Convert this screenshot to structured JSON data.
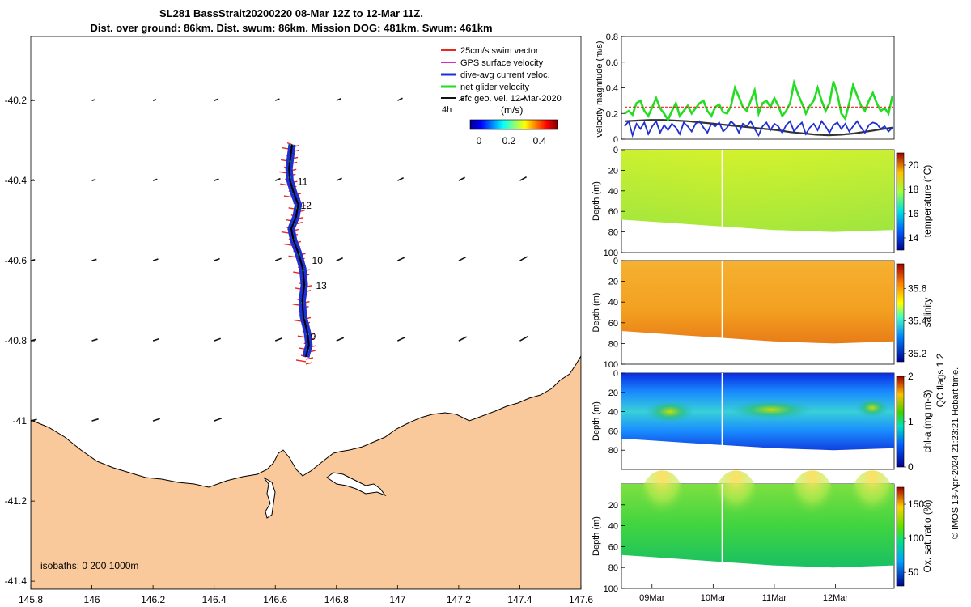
{
  "title": {
    "line1": "SL281 BassStrait20200220 08-Mar 12Z to 12-Mar 11Z.",
    "line2": "Dist. over ground: 86km. Dist. swum: 86km. Mission DOG: 481km. Swum: 461km"
  },
  "colors": {
    "land": "#f9c99b",
    "swim": "#e8281e",
    "gps": "#d22ad2",
    "current": "#1f2fd0",
    "net": "#22dd22",
    "geo": "#111111"
  },
  "chart_data": [
    {
      "type": "map",
      "xlim": [
        145.8,
        147.6
      ],
      "ylim": [
        -41.42,
        -40.04
      ],
      "x_ticks": [
        "145.8",
        "146",
        "146.2",
        "146.4",
        "146.6",
        "146.8",
        "147",
        "147.2",
        "147.4",
        "147.6"
      ],
      "y_ticks": [
        "-40.2",
        "-40.4",
        "-40.6",
        "-40.8",
        "-41",
        "-41.2",
        "-41.4"
      ],
      "legend": {
        "placement": "top-right",
        "entries": [
          "25cm/s swim vector",
          "GPS surface velocity",
          "dive-avg current veloc.",
          "net glider velocity",
          "sfc geo. vel. 12-Mar-2020"
        ],
        "time_label": "4h"
      },
      "colorbar": {
        "label": "(m/s)",
        "ticks": [
          "0",
          "0.2",
          "0.4"
        ],
        "range": [
          0,
          0.5
        ]
      },
      "isobaths_text": "isobaths: 0   200  1000m",
      "track": [
        [
          146.655,
          -40.31
        ],
        [
          146.65,
          -40.34
        ],
        [
          146.645,
          -40.37
        ],
        [
          146.648,
          -40.4
        ],
        [
          146.66,
          -40.43
        ],
        [
          146.675,
          -40.46
        ],
        [
          146.668,
          -40.49
        ],
        [
          146.652,
          -40.52
        ],
        [
          146.66,
          -40.55
        ],
        [
          146.675,
          -40.58
        ],
        [
          146.69,
          -40.62
        ],
        [
          146.695,
          -40.66
        ],
        [
          146.688,
          -40.7
        ],
        [
          146.692,
          -40.74
        ],
        [
          146.705,
          -40.78
        ],
        [
          146.71,
          -40.81
        ],
        [
          146.7,
          -40.84
        ]
      ],
      "day_labels": [
        {
          "text": "11",
          "lon": 146.673,
          "lat": -40.403
        },
        {
          "text": "12",
          "lon": 146.683,
          "lat": -40.462
        },
        {
          "text": "10",
          "lon": 146.72,
          "lat": -40.6
        },
        {
          "text": "13",
          "lon": 146.733,
          "lat": -40.662
        },
        {
          "text": "9",
          "lon": 146.715,
          "lat": -40.79
        }
      ],
      "geo_vector_lats": [
        -40.2,
        -40.4,
        -40.6,
        -40.8,
        -41.0
      ]
    },
    {
      "type": "line",
      "ylabel": "velocity magnitude (m/s)",
      "ylim": [
        0,
        0.8
      ],
      "y_ticks": [
        "0",
        "0.2",
        "0.4",
        "0.6",
        "0.8"
      ],
      "x_ticks": [
        "09Mar",
        "10Mar",
        "11Mar",
        "12Mar"
      ],
      "xlim_days": [
        8.5,
        12.96
      ],
      "series": [
        {
          "values": [
            0.2,
            0.22,
            0.19,
            0.28,
            0.3,
            0.22,
            0.18,
            0.25,
            0.32,
            0.24,
            0.2,
            0.15,
            0.22,
            0.28,
            0.18,
            0.22,
            0.26,
            0.2,
            0.24,
            0.28,
            0.3,
            0.22,
            0.18,
            0.25,
            0.27,
            0.21,
            0.2,
            0.26,
            0.4,
            0.33,
            0.25,
            0.22,
            0.3,
            0.38,
            0.2,
            0.28,
            0.3,
            0.25,
            0.32,
            0.26,
            0.18,
            0.22,
            0.28,
            0.44,
            0.35,
            0.28,
            0.2,
            0.26,
            0.3,
            0.4,
            0.3,
            0.22,
            0.28,
            0.45,
            0.35,
            0.2,
            0.16,
            0.28,
            0.42,
            0.34,
            0.26,
            0.22,
            0.3,
            0.36,
            0.28,
            0.22,
            0.24,
            0.2,
            0.34
          ]
        },
        {
          "values": [
            0.1,
            0.14,
            0.03,
            0.12,
            0.08,
            0.13,
            0.04,
            0.1,
            0.14,
            0.05,
            0.11,
            0.07,
            0.12,
            0.09,
            0.04,
            0.13,
            0.1,
            0.06,
            0.12,
            0.14,
            0.09,
            0.05,
            0.12,
            0.1,
            0.13,
            0.06,
            0.09,
            0.14,
            0.11,
            0.05,
            0.12,
            0.1,
            0.14,
            0.08,
            0.03,
            0.1,
            0.13,
            0.07,
            0.12,
            0.1,
            0.05,
            0.11,
            0.14,
            0.06,
            0.1,
            0.13,
            0.04,
            0.09,
            0.12,
            0.07,
            0.14,
            0.1,
            0.05,
            0.11,
            0.13,
            0.08,
            0.12,
            0.06,
            0.1,
            0.14,
            0.09,
            0.05,
            0.11,
            0.13,
            0.12,
            0.08,
            0.1,
            0.06,
            0.09
          ]
        },
        {
          "values": [
            0.14,
            0.145,
            0.15,
            0.15,
            0.145,
            0.14,
            0.13,
            0.12,
            0.11,
            0.1,
            0.09,
            0.08,
            0.07,
            0.055,
            0.045,
            0.035,
            0.03,
            0.035,
            0.045,
            0.06,
            0.075,
            0.09
          ]
        },
        {
          "values": [
            0.25,
            0.25
          ]
        }
      ]
    },
    {
      "type": "heatmap",
      "variable": "temperature",
      "cb_label": "temperature (°C)",
      "ylabel": "Depth (m)",
      "y_ticks": [
        "0",
        "20",
        "40",
        "60",
        "80",
        "100"
      ],
      "cb_ticks": [
        "14",
        "16",
        "18",
        "20"
      ],
      "cb_range": [
        13,
        21
      ],
      "bottom_depth_m": [
        68,
        70,
        72,
        74,
        76,
        78,
        79,
        80,
        79,
        78
      ]
    },
    {
      "type": "heatmap",
      "variable": "salinity",
      "cb_label": "salinity",
      "ylabel": "Depth (m)",
      "y_ticks": [
        "0",
        "20",
        "40",
        "60",
        "80",
        "100"
      ],
      "cb_ticks": [
        "35.2",
        "35.4",
        "35.6"
      ],
      "cb_range": [
        35.15,
        35.75
      ],
      "bottom_depth_m": [
        68,
        70,
        72,
        74,
        76,
        78,
        79,
        80,
        79,
        78
      ]
    },
    {
      "type": "heatmap",
      "variable": "chl-a",
      "cb_label": "chl-a (mg m-3)",
      "ylabel": "Depth (m)",
      "y_ticks": [
        "0",
        "20",
        "40",
        "60",
        "80"
      ],
      "cb_ticks": [
        "0",
        "1",
        "2"
      ],
      "cb_range": [
        0,
        2
      ],
      "bottom_depth_m": [
        68,
        70,
        72,
        74,
        76,
        78,
        79,
        80,
        79,
        78
      ]
    },
    {
      "type": "heatmap",
      "variable": "oxygen",
      "cb_label": "Ox. sat. ratio (%)",
      "ylabel": "Depth (m)",
      "y_ticks": [
        "20",
        "40",
        "60",
        "80",
        "100"
      ],
      "cb_ticks": [
        "50",
        "100",
        "150"
      ],
      "cb_range": [
        30,
        175
      ],
      "bottom_depth_m": [
        68,
        70,
        72,
        74,
        76,
        78,
        79,
        80,
        79,
        78
      ]
    }
  ],
  "side_text": {
    "qc": "QC flags 1  2",
    "credit": "© IMOS 13-Apr-2024 21:23:21 Hobart time."
  }
}
